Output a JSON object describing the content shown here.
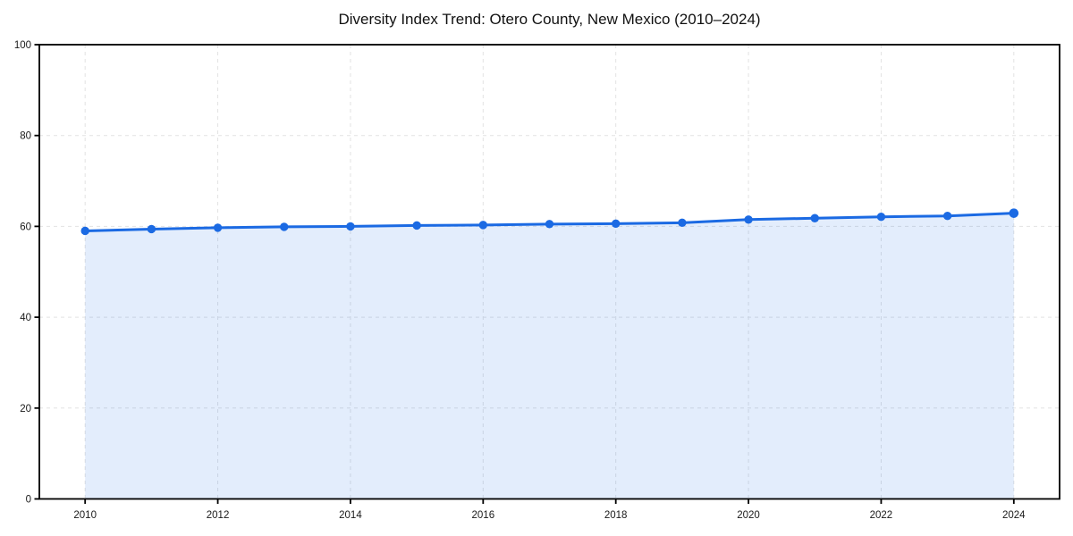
{
  "chart_data": {
    "type": "line",
    "title": "Diversity Index Trend: Otero County, New Mexico (2010–2024)",
    "x": [
      2010,
      2011,
      2012,
      2013,
      2014,
      2015,
      2016,
      2017,
      2018,
      2019,
      2020,
      2021,
      2022,
      2023,
      2024
    ],
    "series": [
      {
        "name": "Diversity Index",
        "values": [
          59.0,
          59.4,
          59.7,
          59.9,
          60.0,
          60.2,
          60.3,
          60.5,
          60.6,
          60.8,
          61.5,
          61.8,
          62.1,
          62.3,
          62.9
        ]
      }
    ],
    "xlabel": "",
    "ylabel": "",
    "ylim": [
      0,
      100
    ],
    "xlim": [
      2009.31,
      2024.69
    ],
    "y_ticks": [
      0,
      20,
      40,
      60,
      80,
      100
    ],
    "x_ticks": [
      2010,
      2012,
      2014,
      2016,
      2018,
      2020,
      2022,
      2024
    ],
    "grid": "dashed",
    "legend": "none",
    "area_fill": true,
    "marker": "circle",
    "colors": {
      "line": "#1b6ae3",
      "marker": "#1b6ae3",
      "fill": "#1b6ae3",
      "fill_opacity": 0.12,
      "grid": "#e2e2e2",
      "axis": "#000000",
      "text": "#1a1a1a",
      "background": "#ffffff"
    }
  }
}
